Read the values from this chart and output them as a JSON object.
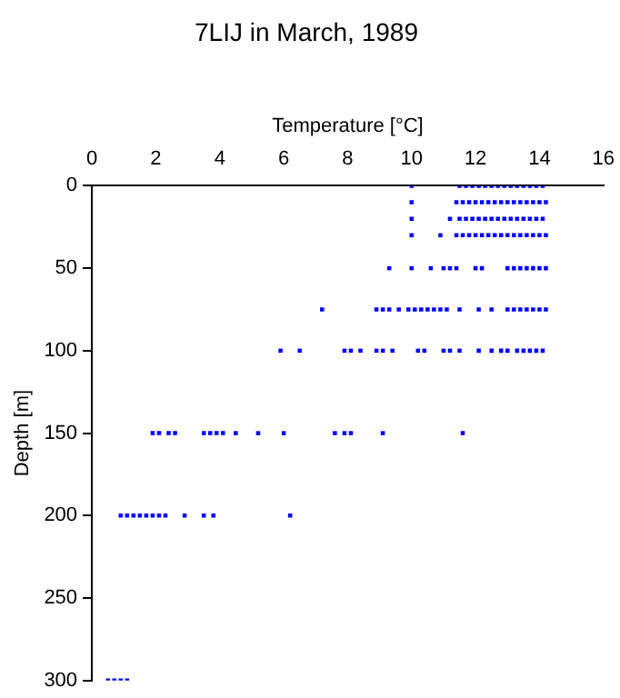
{
  "chart_data": {
    "type": "scatter",
    "title": "7LIJ in March, 1989",
    "xlabel": "Temperature [°C]",
    "ylabel": "Depth [m]",
    "xlim": [
      0,
      16
    ],
    "xticks": [
      0,
      2,
      4,
      6,
      8,
      10,
      12,
      14,
      16
    ],
    "ylim": [
      300,
      0
    ],
    "yticks": [
      0,
      50,
      100,
      150,
      200,
      250,
      300
    ],
    "grid": false,
    "legend": false,
    "marker": "square",
    "series": [
      {
        "color": "#0000ff",
        "x": [
          10.0,
          11.5,
          11.7,
          11.9,
          12.1,
          12.3,
          12.5,
          12.7,
          12.9,
          13.1,
          13.3,
          13.5,
          13.7,
          13.9,
          14.1,
          10.0,
          11.4,
          11.6,
          11.8,
          12.0,
          12.2,
          12.4,
          12.6,
          12.8,
          13.0,
          13.2,
          13.4,
          13.6,
          13.8,
          14.0,
          14.2,
          10.0,
          11.2,
          11.5,
          11.7,
          11.9,
          12.1,
          12.3,
          12.5,
          12.7,
          12.9,
          13.1,
          13.3,
          13.5,
          13.7,
          13.9,
          14.1,
          10.0,
          10.9,
          11.4,
          11.6,
          11.8,
          12.0,
          12.2,
          12.4,
          12.6,
          12.8,
          13.0,
          13.2,
          13.4,
          13.6,
          13.8,
          14.0,
          14.2,
          9.3,
          10.0,
          10.6,
          11.0,
          11.2,
          11.4,
          12.0,
          12.2,
          13.0,
          13.2,
          13.4,
          13.6,
          13.8,
          14.0,
          14.2,
          7.2,
          8.9,
          9.1,
          9.3,
          9.6,
          9.9,
          10.1,
          10.3,
          10.5,
          10.7,
          10.9,
          11.1,
          11.5,
          12.1,
          12.5,
          13.0,
          13.2,
          13.4,
          13.6,
          13.8,
          14.0,
          14.2,
          5.9,
          6.5,
          7.9,
          8.1,
          8.4,
          8.9,
          9.1,
          9.4,
          10.2,
          10.4,
          11.0,
          11.2,
          11.5,
          12.1,
          12.5,
          12.8,
          13.0,
          13.3,
          13.5,
          13.7,
          13.9,
          14.1,
          1.9,
          2.1,
          2.4,
          2.6,
          3.5,
          3.7,
          3.9,
          4.1,
          4.5,
          5.2,
          6.0,
          7.6,
          7.9,
          8.1,
          9.1,
          11.6,
          0.9,
          1.1,
          1.3,
          1.5,
          1.7,
          1.9,
          2.1,
          2.3,
          2.9,
          3.5,
          3.8,
          6.2,
          0.5,
          0.7,
          0.9,
          1.1
        ],
        "values": [
          0,
          0,
          0,
          0,
          0,
          0,
          0,
          0,
          0,
          0,
          0,
          0,
          0,
          0,
          0,
          10,
          10,
          10,
          10,
          10,
          10,
          10,
          10,
          10,
          10,
          10,
          10,
          10,
          10,
          10,
          10,
          20,
          20,
          20,
          20,
          20,
          20,
          20,
          20,
          20,
          20,
          20,
          20,
          20,
          20,
          20,
          20,
          30,
          30,
          30,
          30,
          30,
          30,
          30,
          30,
          30,
          30,
          30,
          30,
          30,
          30,
          30,
          30,
          30,
          50,
          50,
          50,
          50,
          50,
          50,
          50,
          50,
          50,
          50,
          50,
          50,
          50,
          50,
          50,
          75,
          75,
          75,
          75,
          75,
          75,
          75,
          75,
          75,
          75,
          75,
          75,
          75,
          75,
          75,
          75,
          75,
          75,
          75,
          75,
          75,
          75,
          100,
          100,
          100,
          100,
          100,
          100,
          100,
          100,
          100,
          100,
          100,
          100,
          100,
          100,
          100,
          100,
          100,
          100,
          100,
          100,
          100,
          100,
          150,
          150,
          150,
          150,
          150,
          150,
          150,
          150,
          150,
          150,
          150,
          150,
          150,
          150,
          150,
          150,
          200,
          200,
          200,
          200,
          200,
          200,
          200,
          200,
          200,
          200,
          200,
          200,
          300,
          300,
          300,
          300
        ]
      }
    ]
  }
}
